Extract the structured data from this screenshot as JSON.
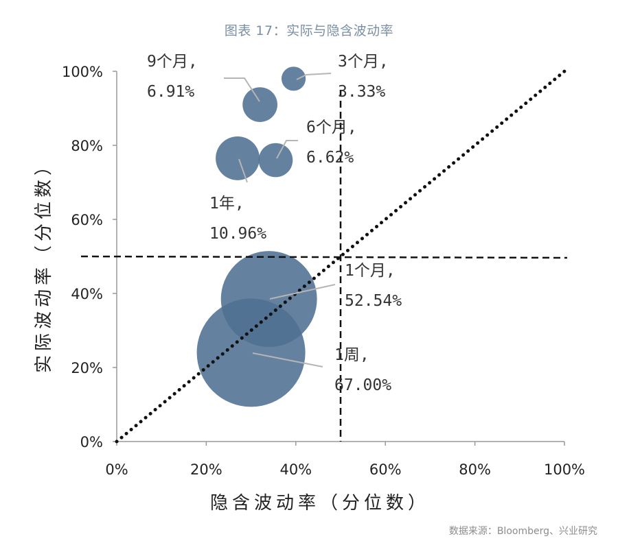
{
  "figure": {
    "title": "图表 17：实际与隐含波动率",
    "source": "数据来源：Bloomberg、兴业研究"
  },
  "chart_data": {
    "type": "bubble",
    "xlabel": "隐含波动率（分位数）",
    "ylabel": "实际波动率（分位数）",
    "xlim": [
      0,
      100
    ],
    "ylim": [
      0,
      100
    ],
    "x_ticks": [
      "0%",
      "20%",
      "40%",
      "60%",
      "80%",
      "100%"
    ],
    "y_ticks": [
      "0%",
      "20%",
      "40%",
      "60%",
      "80%",
      "100%"
    ],
    "reference_lines": {
      "vertical_x": 50,
      "horizontal_y": 50,
      "diagonal": "y = x"
    },
    "bubble_color": "#4e7092",
    "points": [
      {
        "tenor": "1周",
        "label_line1": "1周,",
        "label_line2": "67.00%",
        "x": 30,
        "y": 24,
        "size": 67.0
      },
      {
        "tenor": "1个月",
        "label_line1": "1个月,",
        "label_line2": "52.54%",
        "x": 34,
        "y": 38.5,
        "size": 52.54
      },
      {
        "tenor": "1年",
        "label_line1": "1年,",
        "label_line2": "10.96%",
        "x": 27,
        "y": 76.5,
        "size": 10.96
      },
      {
        "tenor": "6个月",
        "label_line1": "6个月,",
        "label_line2": "6.62%",
        "x": 35.5,
        "y": 76,
        "size": 6.62
      },
      {
        "tenor": "9个月",
        "label_line1": "9个月,",
        "label_line2": "6.91%",
        "x": 32,
        "y": 91,
        "size": 6.91
      },
      {
        "tenor": "3个月",
        "label_line1": "3个月,",
        "label_line2": "3.33%",
        "x": 39.5,
        "y": 98,
        "size": 3.33
      }
    ]
  }
}
